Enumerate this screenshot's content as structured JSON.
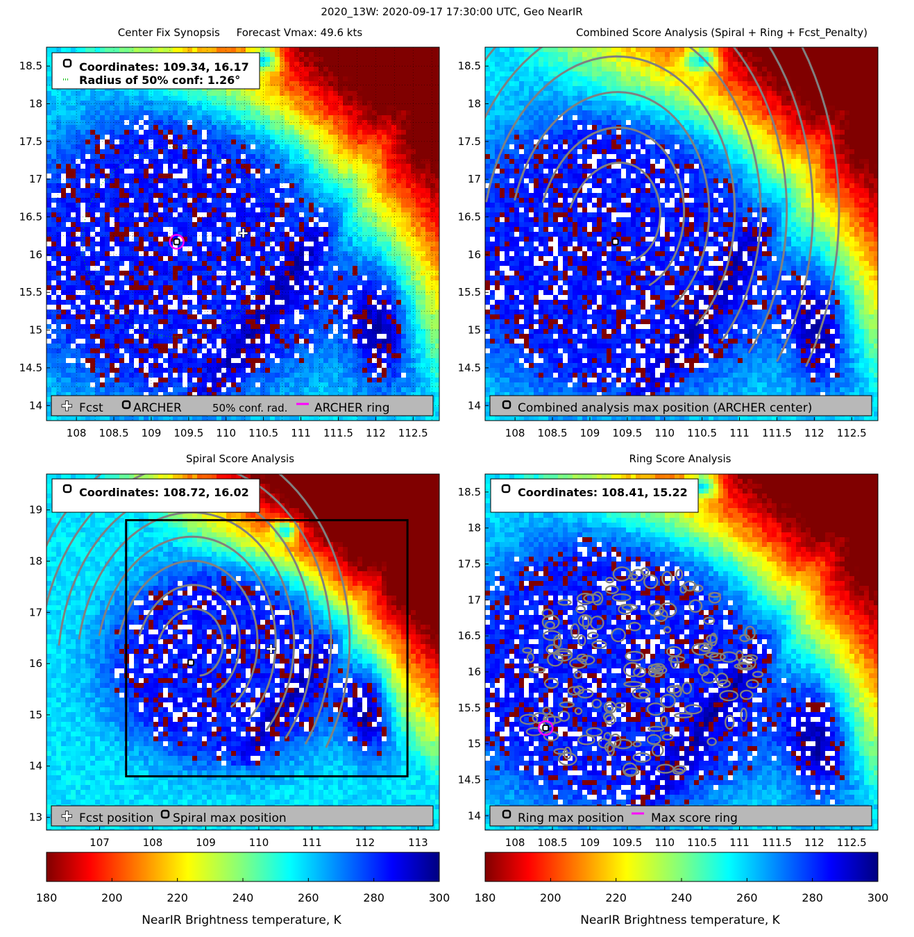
{
  "figure_title": "2020_13W: 2020-09-17 17:30:00 UTC, Geo NearIR",
  "colors": {
    "fcst_marker": "#ffffff",
    "archer_marker": "#000000",
    "ring": "#ff00ff",
    "conf_radius": "#00c000",
    "contour": "#808080",
    "search_box": "#000000"
  },
  "colormap": "jet",
  "chart_data": [
    {
      "id": "center-fix-synopsis",
      "type": "heatmap",
      "title": "Center Fix Synopsis     Forecast Vmax: 49.6 kts",
      "x_ticks": [
        "108",
        "108.5",
        "109",
        "109.5",
        "110",
        "110.5",
        "111",
        "111.5",
        "112",
        "112.5"
      ],
      "y_ticks": [
        "14",
        "14.5",
        "15",
        "15.5",
        "16",
        "16.5",
        "17",
        "17.5",
        "18",
        "18.5"
      ],
      "xlim": [
        107.6,
        112.85
      ],
      "ylim": [
        13.8,
        18.75
      ],
      "grid": true,
      "infobox": [
        "Coordinates: 109.34, 16.17",
        "Radius of 50% conf: 1.26°"
      ],
      "legend": [
        "Fcst",
        "ARCHER",
        "50% conf. rad.",
        "ARCHER ring"
      ],
      "legend_placement": "bottom",
      "points": {
        "archer": [
          109.34,
          16.17
        ],
        "fcst": [
          110.23,
          16.28
        ]
      },
      "conf_radius_deg": 1.26
    },
    {
      "id": "combined-score-analysis",
      "type": "heatmap",
      "title": "Combined Score Analysis (Spiral + Ring + Fcst_Penalty)",
      "x_ticks": [
        "108",
        "108.5",
        "109",
        "109.5",
        "110",
        "110.5",
        "111",
        "111.5",
        "112",
        "112.5"
      ],
      "y_ticks": [
        "14",
        "14.5",
        "15",
        "15.5",
        "16",
        "16.5",
        "17",
        "17.5",
        "18",
        "18.5"
      ],
      "xlim": [
        107.6,
        112.85
      ],
      "ylim": [
        13.8,
        18.75
      ],
      "grid": false,
      "legend": [
        "Combined analysis max position (ARCHER center)"
      ],
      "legend_placement": "bottom",
      "points": {
        "archer": [
          109.34,
          16.17
        ]
      }
    },
    {
      "id": "spiral-score-analysis",
      "type": "heatmap",
      "title": "Spiral Score Analysis",
      "x_ticks": [
        "107",
        "108",
        "109",
        "110",
        "111",
        "112",
        "113"
      ],
      "y_ticks": [
        "13",
        "14",
        "15",
        "16",
        "17",
        "18",
        "19"
      ],
      "xlim": [
        106.0,
        113.4
      ],
      "ylim": [
        12.75,
        19.7
      ],
      "grid": false,
      "infobox": [
        "Coordinates: 108.72, 16.02"
      ],
      "legend": [
        "Fcst position",
        "Spiral max position"
      ],
      "legend_placement": "bottom",
      "points": {
        "spiral_max": [
          108.72,
          16.02
        ],
        "fcst": [
          110.23,
          16.28
        ]
      },
      "search_box": {
        "x": [
          107.5,
          112.8
        ],
        "y": [
          13.8,
          18.8
        ]
      }
    },
    {
      "id": "ring-score-analysis",
      "type": "heatmap",
      "title": "Ring Score Analysis",
      "x_ticks": [
        "108",
        "108.5",
        "109",
        "109.5",
        "110",
        "110.5",
        "111",
        "111.5",
        "112",
        "112.5"
      ],
      "y_ticks": [
        "14",
        "14.5",
        "15",
        "15.5",
        "16",
        "16.5",
        "17",
        "17.5",
        "18",
        "18.5"
      ],
      "xlim": [
        107.6,
        112.85
      ],
      "ylim": [
        13.8,
        18.75
      ],
      "grid": false,
      "infobox": [
        "Coordinates: 108.41, 15.22"
      ],
      "legend": [
        "Ring max position",
        "Max score ring"
      ],
      "legend_placement": "bottom",
      "points": {
        "ring_max": [
          108.41,
          15.22
        ]
      }
    }
  ],
  "colorbars": [
    {
      "ticks": [
        "180",
        "200",
        "220",
        "240",
        "260",
        "280",
        "300"
      ],
      "range": [
        180,
        300
      ],
      "label": "NearIR Brightness temperature, K"
    },
    {
      "ticks": [
        "180",
        "200",
        "220",
        "240",
        "260",
        "280",
        "300"
      ],
      "range": [
        180,
        300
      ],
      "label": "NearIR Brightness temperature, K"
    }
  ]
}
